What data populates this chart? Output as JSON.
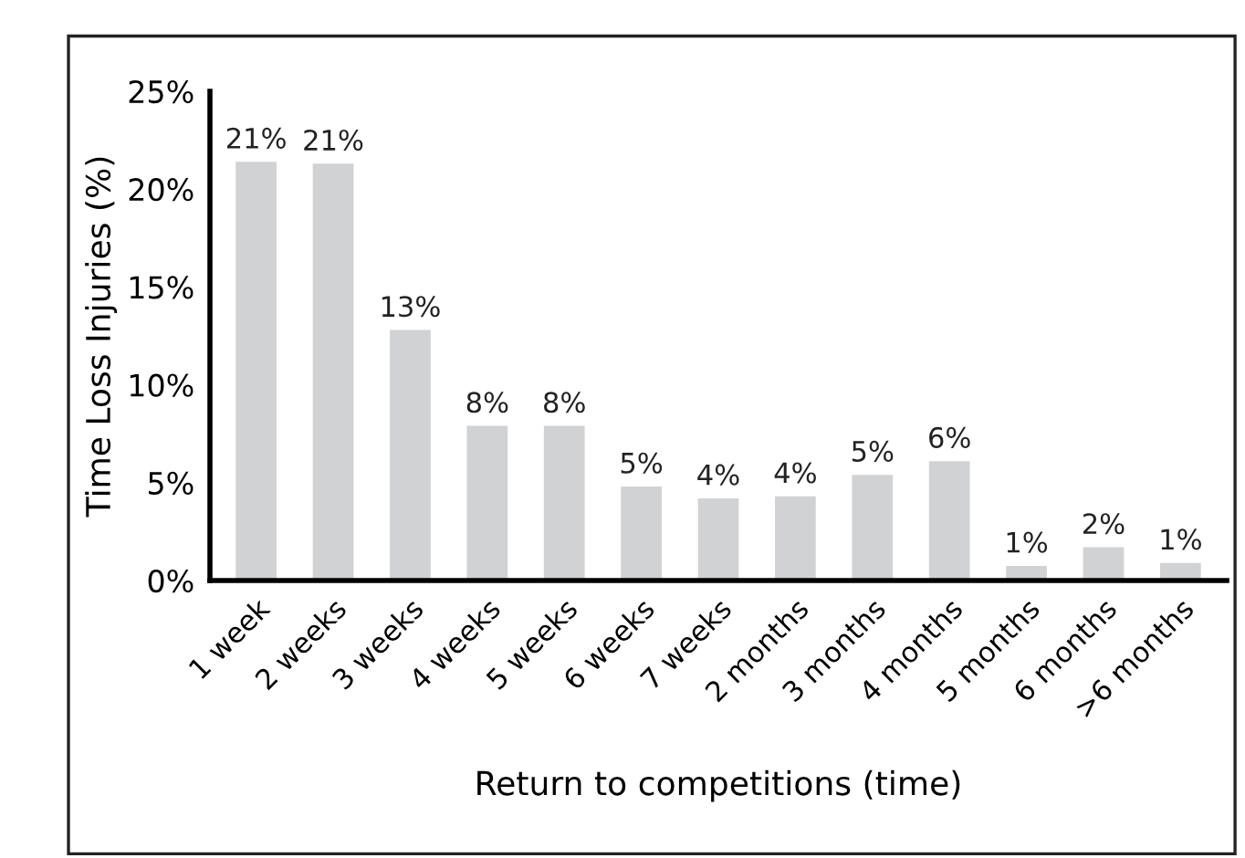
{
  "chart_data": {
    "type": "bar",
    "xlabel": "Return to competitions (time)",
    "ylabel": "Time Loss Injuries (%)",
    "categories": [
      "1 week",
      "2 weeks",
      "3 weeks",
      "4 weeks",
      "5 weeks",
      "6 weeks",
      "7 weeks",
      "2 months",
      "3 months",
      "4 months",
      "5 months",
      "6 months",
      ">6 months"
    ],
    "values": [
      21.4,
      21.3,
      12.8,
      7.9,
      7.9,
      4.8,
      4.2,
      4.3,
      5.4,
      6.1,
      0.75,
      1.7,
      0.9
    ],
    "value_labels": [
      "21%",
      "21%",
      "13%",
      "8%",
      "8%",
      "5%",
      "4%",
      "4%",
      "5%",
      "6%",
      "1%",
      "2%",
      "1%"
    ],
    "color": "#d1d2d4",
    "ylim": [
      0,
      25
    ],
    "yticks": [
      {
        "value": 0,
        "label": "0%"
      },
      {
        "value": 5,
        "label": "5%"
      },
      {
        "value": 10,
        "label": "10%"
      },
      {
        "value": 15,
        "label": "15%"
      },
      {
        "value": 20,
        "label": "20%"
      },
      {
        "value": 25,
        "label": "25%"
      }
    ],
    "grid": false,
    "legend": false
  }
}
